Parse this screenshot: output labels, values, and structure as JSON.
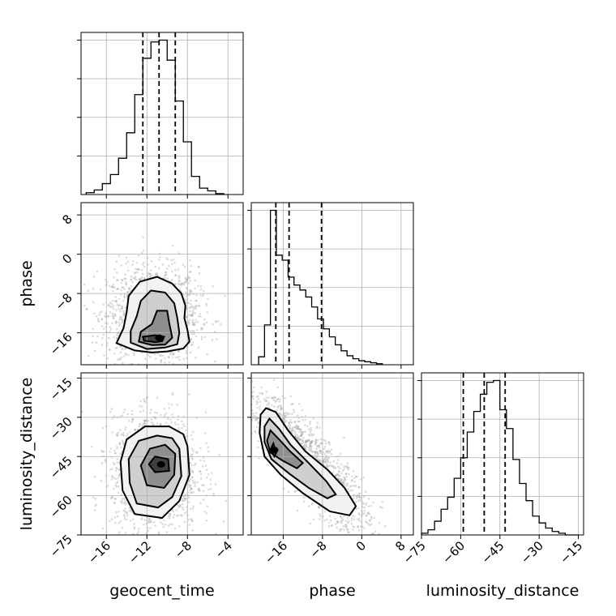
{
  "chart_data": {
    "type": "corner",
    "parameters": [
      "geocent_time",
      "phase",
      "luminosity_distance"
    ],
    "axis_labels": {
      "x": [
        "geocent_time",
        "phase",
        "luminosity_distance"
      ],
      "y": [
        "phase",
        "luminosity_distance"
      ]
    },
    "ranges": {
      "geocent_time": [
        -18.5,
        -2.5
      ],
      "phase": [
        -22.5,
        10.5
      ],
      "luminosity_distance": [
        -75,
        -13
      ]
    },
    "ticks": {
      "geocent_time": [
        -16,
        -12,
        -8,
        -4
      ],
      "phase": [
        -16,
        -8,
        0,
        8
      ],
      "luminosity_distance": [
        -75,
        -60,
        -45,
        -30,
        -15
      ]
    },
    "grid": true,
    "color": "#000000",
    "histograms": {
      "geocent_time": {
        "bin_edges": [
          -18.0,
          -17.2,
          -16.4,
          -15.6,
          -14.8,
          -14.0,
          -13.2,
          -12.4,
          -11.6,
          -10.8,
          -10.0,
          -9.2,
          -8.4,
          -7.6,
          -6.8,
          -6.0,
          -5.2,
          -4.4
        ],
        "counts": [
          2,
          5,
          12,
          22,
          40,
          68,
          110,
          150,
          168,
          170,
          148,
          103,
          58,
          20,
          7,
          4,
          1
        ],
        "quantiles": [
          -12.4,
          -10.8,
          -9.2
        ]
      },
      "phase": {
        "bin_edges": [
          -21,
          -19.8,
          -18.6,
          -17.4,
          -16.2,
          -15.0,
          -13.8,
          -12.6,
          -11.4,
          -10.2,
          -9.0,
          -7.8,
          -6.6,
          -5.4,
          -4.2,
          -3.0,
          -1.8,
          -0.6,
          0.6,
          1.8,
          3.0,
          4.2
        ],
        "counts": [
          8,
          40,
          155,
          110,
          105,
          88,
          80,
          75,
          68,
          58,
          46,
          36,
          28,
          20,
          14,
          9,
          6,
          4,
          3,
          2,
          1
        ],
        "quantiles": [
          -17.5,
          -14.8,
          -8.2
        ]
      },
      "luminosity_distance": {
        "bin_edges": [
          -75,
          -72.5,
          -70,
          -67.5,
          -65,
          -62.5,
          -60,
          -57.5,
          -55,
          -52.5,
          -50,
          -47.5,
          -45,
          -42.5,
          -40,
          -37.5,
          -35,
          -32.5,
          -30,
          -27.5,
          -25,
          -22.5,
          -20,
          -17.5,
          -15
        ],
        "counts": [
          1,
          3,
          8,
          15,
          22,
          33,
          45,
          60,
          72,
          82,
          89,
          90,
          73,
          62,
          44,
          30,
          20,
          11,
          7,
          4,
          2,
          1,
          0,
          0
        ],
        "quantiles": [
          -59,
          -51,
          -43
        ]
      }
    },
    "joint": {
      "geocent_time-phase": {
        "peak": [
          -10.8,
          -17.0
        ],
        "contours": [
          [
            [
              -10.0,
              -19.8
            ],
            [
              -8.4,
              -19.2
            ],
            [
              -7.8,
              -17.8
            ],
            [
              -8.0,
              -15.4
            ],
            [
              -8.3,
              -13.0
            ],
            [
              -8.2,
              -10.5
            ],
            [
              -8.6,
              -8.0
            ],
            [
              -9.5,
              -6.0
            ],
            [
              -11.0,
              -4.6
            ],
            [
              -12.7,
              -5.6
            ],
            [
              -13.8,
              -8.5
            ],
            [
              -14.0,
              -11.8
            ],
            [
              -14.3,
              -15.0
            ],
            [
              -15.0,
              -18.1
            ],
            [
              -13.2,
              -19.6
            ],
            [
              -11.5,
              -20.0
            ]
          ],
          [
            [
              -10.2,
              -19.0
            ],
            [
              -9.0,
              -18.3
            ],
            [
              -8.8,
              -16.0
            ],
            [
              -9.0,
              -13.0
            ],
            [
              -9.3,
              -10.0
            ],
            [
              -10.2,
              -7.8
            ],
            [
              -11.6,
              -7.4
            ],
            [
              -12.6,
              -9.5
            ],
            [
              -13.0,
              -12.6
            ],
            [
              -13.6,
              -15.6
            ],
            [
              -13.6,
              -18.0
            ],
            [
              -12.0,
              -19.3
            ]
          ],
          [
            [
              -10.2,
              -18.4
            ],
            [
              -9.5,
              -17.0
            ],
            [
              -9.8,
              -14.0
            ],
            [
              -10.0,
              -11.5
            ],
            [
              -11.0,
              -11.5
            ],
            [
              -11.5,
              -14.2
            ],
            [
              -12.6,
              -15.8
            ],
            [
              -12.8,
              -17.8
            ],
            [
              -11.5,
              -18.5
            ]
          ],
          [
            [
              -10.5,
              -17.7
            ],
            [
              -10.3,
              -16.8
            ],
            [
              -11.2,
              -16.5
            ],
            [
              -12.4,
              -16.8
            ],
            [
              -12.3,
              -17.6
            ],
            [
              -11.2,
              -17.9
            ]
          ]
        ]
      },
      "geocent_time-luminosity_distance": {
        "peak": [
          -10.6,
          -48.0
        ],
        "contours": [
          [
            [
              -8.0,
              -41.0
            ],
            [
              -7.8,
              -52.0
            ],
            [
              -8.8,
              -62.0
            ],
            [
              -10.5,
              -68.5
            ],
            [
              -13.2,
              -67.0
            ],
            [
              -14.4,
              -58.0
            ],
            [
              -14.6,
              -47.0
            ],
            [
              -14.0,
              -38.5
            ],
            [
              -12.2,
              -33.5
            ],
            [
              -9.8,
              -33.5
            ],
            [
              -8.4,
              -36.5
            ]
          ],
          [
            [
              -8.8,
              -42.0
            ],
            [
              -8.6,
              -52.5
            ],
            [
              -9.5,
              -60.5
            ],
            [
              -10.9,
              -64.5
            ],
            [
              -13.0,
              -63.0
            ],
            [
              -13.7,
              -55.0
            ],
            [
              -13.8,
              -46.0
            ],
            [
              -12.8,
              -39.0
            ],
            [
              -11.0,
              -37.0
            ],
            [
              -9.5,
              -38.0
            ]
          ],
          [
            [
              -9.2,
              -44.0
            ],
            [
              -9.3,
              -52.0
            ],
            [
              -10.3,
              -57.0
            ],
            [
              -12.0,
              -56.0
            ],
            [
              -12.6,
              -48.5
            ],
            [
              -11.7,
              -42.0
            ],
            [
              -10.2,
              -40.5
            ]
          ],
          [
            [
              -9.9,
              -46.0
            ],
            [
              -9.8,
              -50.5
            ],
            [
              -11.2,
              -51.0
            ],
            [
              -11.8,
              -48.0
            ],
            [
              -11.2,
              -45.0
            ]
          ]
        ]
      },
      "phase-luminosity_distance": {
        "peak": [
          -17.8,
          -42.5
        ],
        "contours": [
          [
            [
              -19.5,
              -26.5
            ],
            [
              -17.5,
              -28.0
            ],
            [
              -15.0,
              -35.0
            ],
            [
              -11.5,
              -43.0
            ],
            [
              -7.0,
              -50.0
            ],
            [
              -3.5,
              -57.0
            ],
            [
              -1.2,
              -64.0
            ],
            [
              -2.5,
              -67.5
            ],
            [
              -6.5,
              -66.0
            ],
            [
              -12.0,
              -59.0
            ],
            [
              -16.5,
              -52.0
            ],
            [
              -19.8,
              -45.0
            ],
            [
              -20.8,
              -36.0
            ],
            [
              -20.6,
              -29.0
            ]
          ],
          [
            [
              -18.8,
              -30.5
            ],
            [
              -16.8,
              -34.5
            ],
            [
              -14.5,
              -40.5
            ],
            [
              -10.8,
              -47.5
            ],
            [
              -7.2,
              -54.5
            ],
            [
              -5.3,
              -59.5
            ],
            [
              -7.0,
              -61.0
            ],
            [
              -10.8,
              -57.0
            ],
            [
              -14.8,
              -51.5
            ],
            [
              -18.4,
              -46.0
            ],
            [
              -19.8,
              -39.5
            ],
            [
              -19.8,
              -33.5
            ]
          ],
          [
            [
              -18.6,
              -35.0
            ],
            [
              -16.8,
              -38.5
            ],
            [
              -14.6,
              -43.0
            ],
            [
              -12.0,
              -47.5
            ],
            [
              -13.2,
              -49.5
            ],
            [
              -16.2,
              -46.5
            ],
            [
              -18.6,
              -43.5
            ],
            [
              -19.3,
              -39.0
            ]
          ],
          [
            [
              -18.0,
              -40.0
            ],
            [
              -17.4,
              -43.5
            ],
            [
              -17.8,
              -45.0
            ],
            [
              -18.6,
              -42.5
            ]
          ]
        ]
      }
    }
  }
}
